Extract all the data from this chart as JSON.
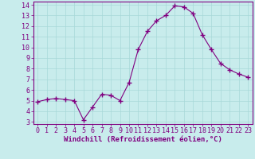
{
  "x": [
    0,
    1,
    2,
    3,
    4,
    5,
    6,
    7,
    8,
    9,
    10,
    11,
    12,
    13,
    14,
    15,
    16,
    17,
    18,
    19,
    20,
    21,
    22,
    23
  ],
  "y": [
    4.9,
    5.1,
    5.2,
    5.1,
    5.0,
    3.2,
    4.4,
    5.6,
    5.5,
    5.0,
    6.7,
    9.8,
    11.5,
    12.5,
    13.0,
    13.9,
    13.8,
    13.2,
    11.2,
    9.8,
    8.5,
    7.9,
    7.5,
    7.2
  ],
  "line_color": "#800080",
  "marker": "+",
  "marker_size": 4,
  "bg_color": "#c8ecec",
  "grid_color": "#a8d8d8",
  "xlabel": "Windchill (Refroidissement éolien,°C)",
  "xlim": [
    -0.5,
    23.5
  ],
  "ylim": [
    2.8,
    14.3
  ],
  "yticks": [
    3,
    4,
    5,
    6,
    7,
    8,
    9,
    10,
    11,
    12,
    13,
    14
  ],
  "xticks": [
    0,
    1,
    2,
    3,
    4,
    5,
    6,
    7,
    8,
    9,
    10,
    11,
    12,
    13,
    14,
    15,
    16,
    17,
    18,
    19,
    20,
    21,
    22,
    23
  ],
  "tick_color": "#800080",
  "label_color": "#800080",
  "spine_color": "#800080",
  "tick_fontsize": 6,
  "xlabel_fontsize": 6.5
}
